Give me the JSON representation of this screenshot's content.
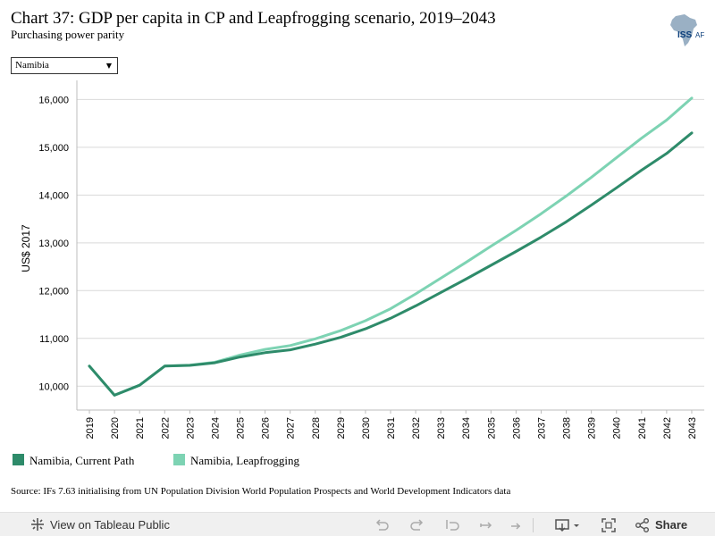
{
  "header": {
    "title": "Chart 37: GDP per capita in CP and Leapfrogging scenario, 2019–2043",
    "subtitle": "Purchasing power parity",
    "logo_text": "ISS|AF"
  },
  "filter": {
    "selected": "Namibia"
  },
  "legend": {
    "items": [
      {
        "label": "Namibia, Current Path",
        "color": "#2e8b6a"
      },
      {
        "label": "Namibia, Leapfrogging",
        "color": "#7dd3b3"
      }
    ]
  },
  "source": "Source: IFs 7.63 initialising from UN Population Division World Population Prospects and World Development Indicators data",
  "footer": {
    "view_label": "View on Tableau Public",
    "share_label": "Share"
  },
  "chart_data": {
    "type": "line",
    "ylabel": "US$ 2017",
    "xlabel": "",
    "ylim": [
      9500,
      16400
    ],
    "yticks": [
      10000,
      11000,
      12000,
      13000,
      14000,
      15000,
      16000
    ],
    "ytick_labels": [
      "10,000",
      "11,000",
      "12,000",
      "13,000",
      "14,000",
      "15,000",
      "16,000"
    ],
    "x": [
      "2019",
      "2020",
      "2021",
      "2022",
      "2023",
      "2024",
      "2025",
      "2026",
      "2027",
      "2028",
      "2029",
      "2030",
      "2031",
      "2032",
      "2033",
      "2034",
      "2035",
      "2036",
      "2037",
      "2038",
      "2039",
      "2040",
      "2041",
      "2042",
      "2043"
    ],
    "grid": true,
    "series": [
      {
        "name": "Namibia, Current Path",
        "color": "#2e8b6a",
        "values": [
          10420,
          9810,
          10020,
          10420,
          10435,
          10490,
          10610,
          10700,
          10760,
          10880,
          11020,
          11200,
          11420,
          11680,
          11960,
          12240,
          12530,
          12820,
          13120,
          13440,
          13790,
          14150,
          14520,
          14870,
          15300
        ]
      },
      {
        "name": "Namibia, Leapfrogging",
        "color": "#7dd3b3",
        "values": [
          10420,
          9810,
          10020,
          10420,
          10440,
          10500,
          10650,
          10770,
          10850,
          10990,
          11160,
          11370,
          11620,
          11930,
          12260,
          12590,
          12930,
          13260,
          13610,
          13980,
          14370,
          14780,
          15190,
          15570,
          16030
        ]
      }
    ]
  }
}
